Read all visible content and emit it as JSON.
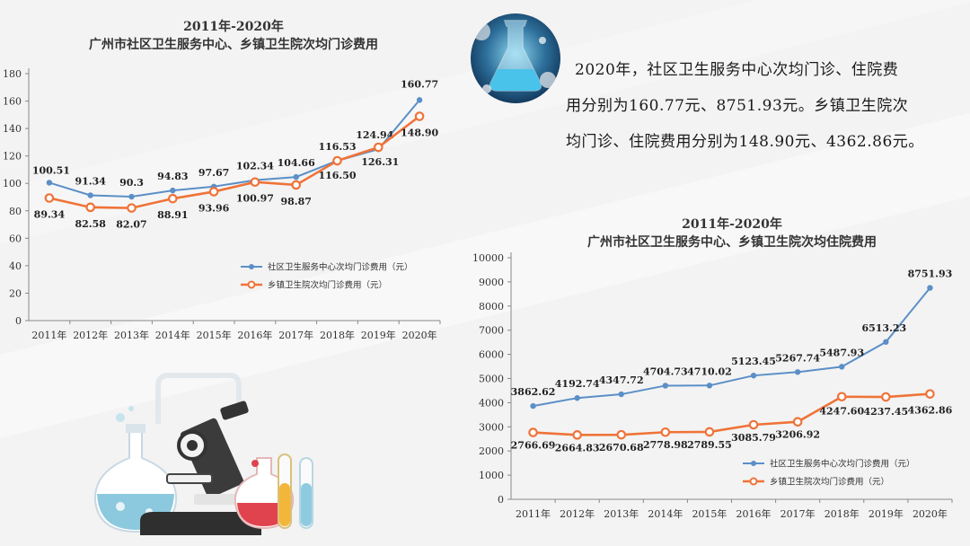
{
  "summary": {
    "text_line1": "2020年，社区卫生服务中心次均门诊、住院费",
    "text_line2": "用分别为160.77元、8751.93元。乡镇卫生院次",
    "text_line3": "均门诊、住院费用分别为148.90元、4362.86元。"
  },
  "colors": {
    "blue": "#5b8fc7",
    "orange": "#ef7338",
    "axis": "#888888"
  },
  "icons": {
    "photo": "lab-flask-photo",
    "illustration": "microscope-glassware-illustration"
  },
  "chart_data": [
    {
      "type": "line",
      "title": "2011年-2020年",
      "subtitle": "广州市社区卫生服务中心、乡镇卫生院次均门诊费用",
      "categories": [
        "2011年",
        "2012年",
        "2013年",
        "2014年",
        "2015年",
        "2016年",
        "2017年",
        "2018年",
        "2019年",
        "2020年"
      ],
      "yticks": [
        0,
        20,
        40,
        60,
        80,
        100,
        120,
        140,
        160,
        180
      ],
      "ylim": [
        0,
        180
      ],
      "series": [
        {
          "name": "社区卫生服务中心次均门诊费用（元）",
          "color": "#5b8fc7",
          "values": [
            100.51,
            91.34,
            90.3,
            94.83,
            97.67,
            102.34,
            104.66,
            116.53,
            124.94,
            160.77
          ],
          "labels": [
            "100.51",
            "91.34",
            "90.3",
            "94.83",
            "97.67",
            "102.34",
            "104.66",
            "116.53",
            "124.94",
            "160.77"
          ]
        },
        {
          "name": "乡镇卫生院次均门诊费用（元）",
          "color": "#ef7338",
          "values": [
            89.34,
            82.58,
            82.07,
            88.91,
            93.96,
            100.97,
            98.87,
            116.5,
            126.31,
            148.9
          ],
          "labels": [
            "89.34",
            "82.58",
            "82.07",
            "88.91",
            "93.96",
            "100.97",
            "98.87",
            "116.50",
            "126.31",
            "148.90"
          ]
        }
      ],
      "legend_position": "lower-right"
    },
    {
      "type": "line",
      "title": "2011年-2020年",
      "subtitle": "广州市社区卫生服务中心、乡镇卫生院次均住院费用",
      "categories": [
        "2011年",
        "2012年",
        "2013年",
        "2014年",
        "2015年",
        "2016年",
        "2017年",
        "2018年",
        "2019年",
        "2020年"
      ],
      "yticks": [
        0,
        1000,
        2000,
        3000,
        4000,
        5000,
        6000,
        7000,
        8000,
        9000,
        10000
      ],
      "ylim": [
        0,
        10000
      ],
      "series": [
        {
          "name": "社区卫生服务中心次均门诊费用（元）",
          "color": "#5b8fc7",
          "values": [
            3862.62,
            4192.74,
            4347.72,
            4704.73,
            4710.02,
            5123.45,
            5267.74,
            5487.93,
            6513.23,
            8751.93
          ],
          "labels": [
            "3862.62",
            "4192.74",
            "4347.72",
            "4704.73",
            "4710.02",
            "5123.45",
            "5267.74",
            "5487.93",
            "6513.23",
            "8751.93"
          ]
        },
        {
          "name": "乡镇卫生院次均门诊费用（元）",
          "color": "#ef7338",
          "values": [
            2766.69,
            2664.83,
            2670.68,
            2778.98,
            2789.55,
            3085.79,
            3206.92,
            4247.6,
            4237.45,
            4362.86
          ],
          "labels": [
            "2766.69",
            "2664.83",
            "2670.68",
            "2778.98",
            "2789.55",
            "3085.79",
            "3206.92",
            "4247.60",
            "4237.45",
            "4362.86"
          ]
        }
      ],
      "legend_position": "lower-right"
    }
  ]
}
